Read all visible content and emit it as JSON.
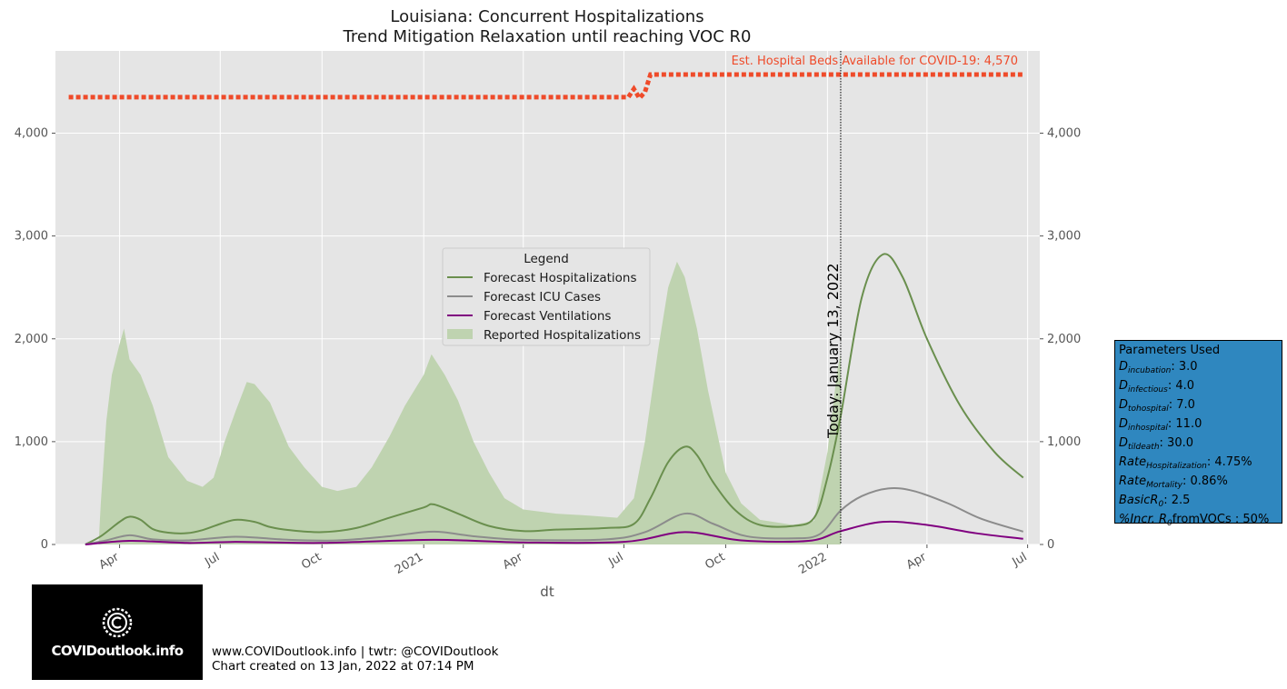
{
  "chart_data": {
    "type": "area",
    "title": "Louisiana: Concurrent Hospitalizations",
    "subtitle": "Trend Mitigation Relaxation until reaching VOC R0",
    "xlabel": "dt",
    "ylabel": "",
    "ylim": [
      0,
      4800
    ],
    "xlim": [
      "2020-02-03",
      "2022-07-12"
    ],
    "x_ticks": [
      {
        "date": "2020-04-01",
        "label": "Apr"
      },
      {
        "date": "2020-07-01",
        "label": "Jul"
      },
      {
        "date": "2020-10-01",
        "label": "Oct"
      },
      {
        "date": "2021-01-01",
        "label": "2021"
      },
      {
        "date": "2021-04-01",
        "label": "Apr"
      },
      {
        "date": "2021-07-01",
        "label": "Jul"
      },
      {
        "date": "2021-10-01",
        "label": "Oct"
      },
      {
        "date": "2022-01-01",
        "label": "2022"
      },
      {
        "date": "2022-04-01",
        "label": "Apr"
      },
      {
        "date": "2022-07-01",
        "label": "Jul"
      }
    ],
    "y_ticks": [
      0,
      1000,
      2000,
      3000,
      4000
    ],
    "y_tick_labels": [
      "0",
      "1,000",
      "2,000",
      "3,000",
      "4,000"
    ],
    "grid": true,
    "legend": {
      "title": "Legend",
      "placement": "center",
      "entries": [
        "Forecast Hospitalizations",
        "Forecast ICU Cases",
        "Forecast Ventilations",
        "Reported Hospitalizations"
      ]
    },
    "colors": {
      "hospitalizations": "#6a8f4e",
      "icu": "#8c8c8c",
      "ventilations": "#800080",
      "reported": "#bfd3b0",
      "beds": "#ef4b2a",
      "background": "#e5e5e5"
    },
    "reported_hospitalizations": {
      "name": "Reported Hospitalizations",
      "points": [
        [
          "2020-03-13",
          0
        ],
        [
          "2020-03-15",
          400
        ],
        [
          "2020-03-20",
          1200
        ],
        [
          "2020-03-25",
          1650
        ],
        [
          "2020-04-01",
          1950
        ],
        [
          "2020-04-05",
          2100
        ],
        [
          "2020-04-10",
          1800
        ],
        [
          "2020-04-20",
          1650
        ],
        [
          "2020-05-01",
          1350
        ],
        [
          "2020-05-15",
          850
        ],
        [
          "2020-06-01",
          620
        ],
        [
          "2020-06-15",
          560
        ],
        [
          "2020-06-25",
          650
        ],
        [
          "2020-07-05",
          1000
        ],
        [
          "2020-07-15",
          1300
        ],
        [
          "2020-07-25",
          1580
        ],
        [
          "2020-08-01",
          1560
        ],
        [
          "2020-08-15",
          1380
        ],
        [
          "2020-09-01",
          950
        ],
        [
          "2020-09-15",
          750
        ],
        [
          "2020-10-01",
          560
        ],
        [
          "2020-10-15",
          520
        ],
        [
          "2020-11-01",
          560
        ],
        [
          "2020-11-15",
          750
        ],
        [
          "2020-12-01",
          1050
        ],
        [
          "2020-12-15",
          1350
        ],
        [
          "2021-01-01",
          1650
        ],
        [
          "2021-01-08",
          1850
        ],
        [
          "2021-01-20",
          1650
        ],
        [
          "2021-02-01",
          1400
        ],
        [
          "2021-02-15",
          1000
        ],
        [
          "2021-03-01",
          700
        ],
        [
          "2021-03-15",
          450
        ],
        [
          "2021-04-01",
          340
        ],
        [
          "2021-05-01",
          300
        ],
        [
          "2021-06-01",
          280
        ],
        [
          "2021-06-25",
          260
        ],
        [
          "2021-07-10",
          450
        ],
        [
          "2021-07-20",
          1000
        ],
        [
          "2021-08-01",
          1900
        ],
        [
          "2021-08-10",
          2500
        ],
        [
          "2021-08-18",
          2750
        ],
        [
          "2021-08-25",
          2600
        ],
        [
          "2021-09-05",
          2100
        ],
        [
          "2021-09-15",
          1500
        ],
        [
          "2021-10-01",
          700
        ],
        [
          "2021-10-15",
          400
        ],
        [
          "2021-11-01",
          240
        ],
        [
          "2021-12-01",
          190
        ],
        [
          "2021-12-20",
          230
        ],
        [
          "2022-01-01",
          900
        ],
        [
          "2022-01-10",
          1700
        ],
        [
          "2022-01-13",
          1850
        ]
      ]
    },
    "series": [
      {
        "name": "Forecast Hospitalizations",
        "points": [
          [
            "2020-03-01",
            0
          ],
          [
            "2020-03-15",
            80
          ],
          [
            "2020-04-01",
            220
          ],
          [
            "2020-04-10",
            270
          ],
          [
            "2020-04-20",
            240
          ],
          [
            "2020-05-01",
            150
          ],
          [
            "2020-05-15",
            115
          ],
          [
            "2020-06-01",
            110
          ],
          [
            "2020-06-15",
            140
          ],
          [
            "2020-07-01",
            200
          ],
          [
            "2020-07-15",
            240
          ],
          [
            "2020-08-01",
            220
          ],
          [
            "2020-08-15",
            170
          ],
          [
            "2020-09-01",
            140
          ],
          [
            "2020-10-01",
            120
          ],
          [
            "2020-11-01",
            160
          ],
          [
            "2020-12-01",
            260
          ],
          [
            "2021-01-01",
            360
          ],
          [
            "2021-01-10",
            390
          ],
          [
            "2021-02-01",
            300
          ],
          [
            "2021-03-01",
            180
          ],
          [
            "2021-04-01",
            130
          ],
          [
            "2021-05-01",
            145
          ],
          [
            "2021-06-15",
            160
          ],
          [
            "2021-07-10",
            200
          ],
          [
            "2021-07-25",
            450
          ],
          [
            "2021-08-10",
            800
          ],
          [
            "2021-08-25",
            950
          ],
          [
            "2021-09-05",
            870
          ],
          [
            "2021-09-20",
            600
          ],
          [
            "2021-10-10",
            330
          ],
          [
            "2021-11-01",
            190
          ],
          [
            "2021-12-01",
            180
          ],
          [
            "2021-12-20",
            260
          ],
          [
            "2022-01-01",
            650
          ],
          [
            "2022-01-13",
            1250
          ],
          [
            "2022-02-01",
            2400
          ],
          [
            "2022-02-20",
            2820
          ],
          [
            "2022-03-10",
            2600
          ],
          [
            "2022-04-01",
            2000
          ],
          [
            "2022-05-01",
            1350
          ],
          [
            "2022-06-01",
            900
          ],
          [
            "2022-06-27",
            650
          ]
        ]
      },
      {
        "name": "Forecast ICU Cases",
        "points": [
          [
            "2020-03-01",
            0
          ],
          [
            "2020-03-20",
            40
          ],
          [
            "2020-04-10",
            90
          ],
          [
            "2020-05-01",
            50
          ],
          [
            "2020-06-01",
            40
          ],
          [
            "2020-07-15",
            75
          ],
          [
            "2020-09-01",
            45
          ],
          [
            "2020-10-15",
            40
          ],
          [
            "2020-12-01",
            80
          ],
          [
            "2021-01-10",
            125
          ],
          [
            "2021-02-15",
            80
          ],
          [
            "2021-04-01",
            45
          ],
          [
            "2021-06-15",
            50
          ],
          [
            "2021-07-20",
            120
          ],
          [
            "2021-08-25",
            300
          ],
          [
            "2021-09-20",
            200
          ],
          [
            "2021-10-20",
            80
          ],
          [
            "2021-12-01",
            60
          ],
          [
            "2021-12-25",
            100
          ],
          [
            "2022-01-13",
            330
          ],
          [
            "2022-02-01",
            470
          ],
          [
            "2022-02-25",
            545
          ],
          [
            "2022-03-20",
            520
          ],
          [
            "2022-04-20",
            400
          ],
          [
            "2022-05-20",
            250
          ],
          [
            "2022-06-27",
            125
          ]
        ]
      },
      {
        "name": "Forecast Ventilations",
        "points": [
          [
            "2020-03-01",
            0
          ],
          [
            "2020-04-10",
            35
          ],
          [
            "2020-06-01",
            15
          ],
          [
            "2020-07-15",
            25
          ],
          [
            "2020-10-01",
            15
          ],
          [
            "2021-01-10",
            45
          ],
          [
            "2021-04-01",
            20
          ],
          [
            "2021-07-01",
            25
          ],
          [
            "2021-08-25",
            120
          ],
          [
            "2021-10-15",
            40
          ],
          [
            "2021-12-15",
            35
          ],
          [
            "2022-01-13",
            130
          ],
          [
            "2022-02-20",
            220
          ],
          [
            "2022-04-01",
            190
          ],
          [
            "2022-05-15",
            110
          ],
          [
            "2022-06-27",
            55
          ]
        ]
      }
    ],
    "beds": {
      "label": "Est. Hospital Beds Available for COVID-19: 4,570",
      "points": [
        [
          "2020-02-15",
          4350
        ],
        [
          "2021-07-05",
          4350
        ],
        [
          "2021-07-10",
          4430
        ],
        [
          "2021-07-15",
          4340
        ],
        [
          "2021-07-20",
          4400
        ],
        [
          "2021-07-25",
          4570
        ],
        [
          "2022-06-27",
          4570
        ]
      ]
    },
    "today": {
      "date": "2022-01-13",
      "label": "Today: January 13, 2022"
    }
  },
  "parameters": {
    "title": "Parameters Used",
    "items": [
      {
        "base": "D",
        "sub": "incubation",
        "value": ": 3.0"
      },
      {
        "base": "D",
        "sub": "infectious",
        "value": ": 4.0"
      },
      {
        "base": "D",
        "sub": "tohospital",
        "value": ": 7.0"
      },
      {
        "base": "D",
        "sub": "inhospital",
        "value": ": 11.0"
      },
      {
        "base": "D",
        "sub": "tildeath",
        "value": ": 30.0"
      },
      {
        "base": "Rate",
        "sub": "Hospitalization",
        "value": ": 4.75%"
      },
      {
        "base": "Rate",
        "sub": "Mortality",
        "value": ": 0.86%"
      },
      {
        "base": "BasicR",
        "sub": "0",
        "value": ": 2.5"
      },
      {
        "base": "%Incr. R",
        "sub": "0",
        "value": "fromVOCs : 50%"
      }
    ],
    "box_color": "#2f87bf"
  },
  "logo": {
    "text": "COVIDoutlook.info"
  },
  "footer": {
    "line1": "www.COVIDoutlook.info | twtr: @COVIDoutlook",
    "line2": "Chart created on 13 Jan, 2022 at 07:14 PM"
  }
}
